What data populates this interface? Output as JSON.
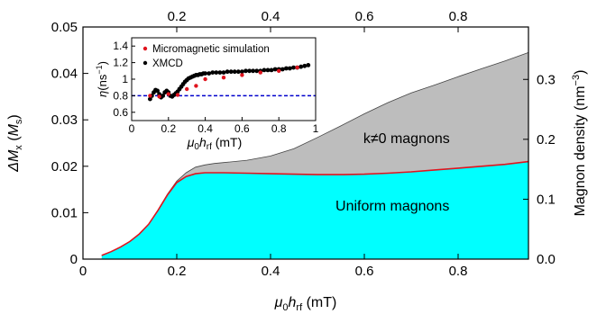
{
  "chart_data": [
    {
      "type": "area",
      "x_bottom_label": "μ0hrf (mT)",
      "x_bottom_label_parts": {
        "mu": "μ",
        "sub0": "0",
        "h": "h",
        "subrf": "rf",
        "unit": " (mT)"
      },
      "x_top_label": "",
      "y_left_label": "ΔMx (Ms)",
      "y_left_label_parts": {
        "delta_m": "ΔM",
        "subx": "x",
        "open": " (",
        "m": "M",
        "subs": "s",
        "close": ")"
      },
      "y_right_label": "Magnon density (nm−3)",
      "y_right_label_parts": {
        "text": "Magnon density (nm",
        "sup": "−3",
        "close": ")"
      },
      "xlim": [
        0,
        0.95
      ],
      "ylim_left": [
        0,
        0.05
      ],
      "ylim_right": [
        0,
        0.3875
      ],
      "x_ticks": [
        0,
        0.2,
        0.4,
        0.6,
        0.8
      ],
      "x_tick_labels": [
        "0",
        "0.2",
        "0.4",
        "0.6",
        "0.8"
      ],
      "x_top_ticks": [
        0.2,
        0.4,
        0.6,
        0.8
      ],
      "x_top_tick_labels": [
        "0.2",
        "0.4",
        "0.6",
        "0.8"
      ],
      "y_left_ticks": [
        0,
        0.01,
        0.02,
        0.03,
        0.04,
        0.05
      ],
      "y_left_tick_labels": [
        "0",
        "0.01",
        "0.02",
        "0.03",
        "0.04",
        "0.05"
      ],
      "y_right_ticks": [
        0,
        0.1,
        0.2,
        0.3
      ],
      "y_right_tick_labels": [
        "0.0",
        "0.1",
        "0.2",
        "0.3"
      ],
      "grid": false,
      "series": [
        {
          "name": "Uniform magnons",
          "color": "#00ffff",
          "line_color": "#e0141e",
          "x": [
            0.04,
            0.06,
            0.08,
            0.1,
            0.12,
            0.14,
            0.16,
            0.18,
            0.2,
            0.22,
            0.24,
            0.26,
            0.28,
            0.3,
            0.35,
            0.4,
            0.45,
            0.5,
            0.55,
            0.6,
            0.65,
            0.7,
            0.75,
            0.8,
            0.85,
            0.9,
            0.95
          ],
          "y": [
            0.0008,
            0.0016,
            0.0026,
            0.0038,
            0.0054,
            0.0075,
            0.0105,
            0.0138,
            0.0165,
            0.0178,
            0.0184,
            0.0186,
            0.0186,
            0.0186,
            0.0185,
            0.0184,
            0.0183,
            0.0182,
            0.0182,
            0.0183,
            0.0185,
            0.0188,
            0.0192,
            0.0196,
            0.02,
            0.0204,
            0.021
          ]
        },
        {
          "name": "k≠0 magnons",
          "color": "#bdbdbd",
          "line_color": "#444444",
          "x": [
            0.04,
            0.06,
            0.08,
            0.1,
            0.12,
            0.14,
            0.16,
            0.18,
            0.2,
            0.22,
            0.24,
            0.26,
            0.28,
            0.3,
            0.35,
            0.4,
            0.45,
            0.5,
            0.55,
            0.6,
            0.65,
            0.7,
            0.75,
            0.8,
            0.85,
            0.9,
            0.95
          ],
          "y": [
            0.0008,
            0.0016,
            0.0026,
            0.0038,
            0.0054,
            0.0075,
            0.0106,
            0.014,
            0.0168,
            0.0186,
            0.0198,
            0.0203,
            0.0206,
            0.0208,
            0.0213,
            0.0222,
            0.0238,
            0.0262,
            0.0287,
            0.0313,
            0.0337,
            0.0358,
            0.0375,
            0.0393,
            0.041,
            0.0427,
            0.0445
          ]
        }
      ],
      "annotations": [
        {
          "text": "k≠0 magnons",
          "x": 0.69,
          "y": 0.025
        },
        {
          "text": "Uniform magnons",
          "x": 0.66,
          "y": 0.0105
        }
      ]
    },
    {
      "type": "scatter",
      "xlabel": "μ0hrf (mT)",
      "xlabel_parts": {
        "mu": "μ",
        "sub0": "0",
        "h": "h",
        "subrf": "rf",
        "unit": " (mT)"
      },
      "ylabel": "η(ns−1)",
      "ylabel_parts": {
        "eta": "η",
        "open": "(ns",
        "sup": "−1",
        "close": ")"
      },
      "xlim": [
        0,
        1
      ],
      "ylim": [
        0.5,
        1.5
      ],
      "x_ticks": [
        0,
        0.2,
        0.4,
        0.6,
        0.8,
        1
      ],
      "x_tick_labels": [
        "0",
        "0.2",
        "0.4",
        "0.6",
        "0.8",
        "1"
      ],
      "y_ticks": [
        0.6,
        0.8,
        1,
        1.2,
        1.4
      ],
      "y_tick_labels": [
        "0.6",
        "0.8",
        "1",
        "1.2",
        "1.4"
      ],
      "reference_line": {
        "y": 0.8,
        "color": "#0000cc",
        "style": "dashed"
      },
      "legend_placement": "top-left",
      "series": [
        {
          "name": "Micromagnetic simulation",
          "marker": "circle",
          "color": "#e0141e",
          "x": [
            0.1,
            0.15,
            0.2,
            0.25,
            0.3,
            0.35,
            0.4,
            0.5,
            0.6,
            0.7,
            0.8,
            0.9
          ],
          "y": [
            0.8,
            0.79,
            0.82,
            0.81,
            0.88,
            0.92,
            1.0,
            1.02,
            1.05,
            1.08,
            1.1,
            1.14
          ]
        },
        {
          "name": "XMCD",
          "marker": "dot",
          "color": "#000000",
          "x": [
            0.1,
            0.11,
            0.12,
            0.13,
            0.14,
            0.15,
            0.16,
            0.17,
            0.18,
            0.19,
            0.2,
            0.21,
            0.22,
            0.23,
            0.24,
            0.25,
            0.26,
            0.27,
            0.28,
            0.29,
            0.3,
            0.31,
            0.32,
            0.33,
            0.34,
            0.35,
            0.36,
            0.37,
            0.38,
            0.39,
            0.4,
            0.42,
            0.44,
            0.46,
            0.48,
            0.5,
            0.52,
            0.54,
            0.56,
            0.58,
            0.6,
            0.62,
            0.64,
            0.66,
            0.68,
            0.7,
            0.72,
            0.74,
            0.76,
            0.78,
            0.8,
            0.82,
            0.84,
            0.86,
            0.88,
            0.9,
            0.92,
            0.94,
            0.96
          ],
          "y": [
            0.76,
            0.8,
            0.84,
            0.87,
            0.86,
            0.82,
            0.78,
            0.8,
            0.84,
            0.86,
            0.84,
            0.8,
            0.79,
            0.81,
            0.83,
            0.85,
            0.88,
            0.91,
            0.94,
            0.97,
            0.99,
            1.01,
            1.02,
            1.03,
            1.04,
            1.05,
            1.05,
            1.06,
            1.06,
            1.07,
            1.07,
            1.07,
            1.08,
            1.08,
            1.08,
            1.08,
            1.09,
            1.09,
            1.09,
            1.09,
            1.09,
            1.1,
            1.1,
            1.1,
            1.1,
            1.1,
            1.11,
            1.11,
            1.11,
            1.12,
            1.12,
            1.12,
            1.13,
            1.13,
            1.14,
            1.14,
            1.15,
            1.16,
            1.17
          ]
        }
      ]
    }
  ]
}
